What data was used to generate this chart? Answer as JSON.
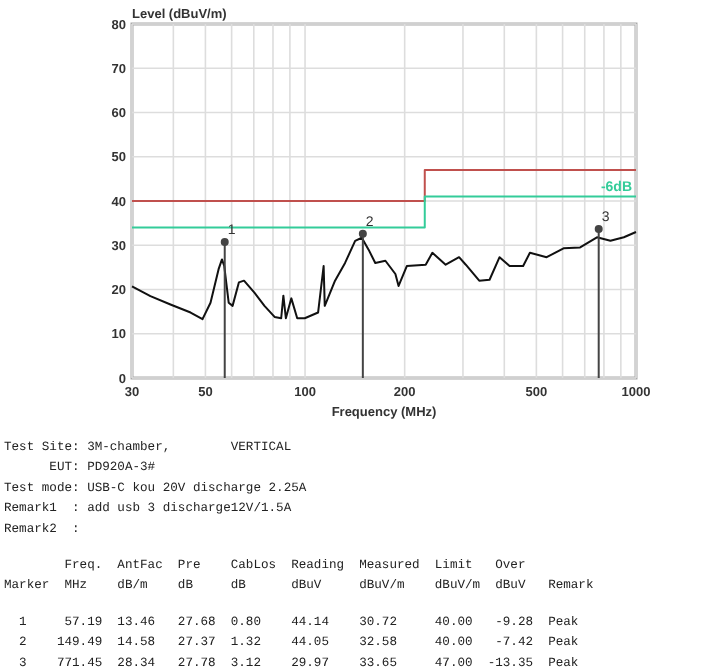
{
  "chart_data": {
    "type": "line",
    "ylabel": "Level (dBuV/m)",
    "xlabel": "Frequency (MHz)",
    "log": "x",
    "grid": true,
    "xlim": [
      30,
      1000
    ],
    "xticks": [
      30,
      {
        "value": 40,
        "label": null
      },
      50,
      {
        "value": 60,
        "label": null
      },
      {
        "value": 70,
        "label": null
      },
      {
        "value": 80,
        "label": null
      },
      {
        "value": 90,
        "label": null
      },
      100,
      200,
      {
        "value": 300,
        "label": null
      },
      {
        "value": 400,
        "label": null
      },
      500,
      {
        "value": 600,
        "label": null
      },
      {
        "value": 700,
        "label": null
      },
      {
        "value": 800,
        "label": null
      },
      {
        "value": 900,
        "label": null
      },
      1000
    ],
    "ylim": [
      0,
      80
    ],
    "yticks": [
      0,
      10,
      20,
      30,
      40,
      50,
      60,
      70,
      80
    ],
    "series": [
      {
        "type": "step",
        "color": "#c0504d",
        "x": [
          30,
          230,
          1000
        ],
        "values": [
          40,
          47,
          47
        ]
      },
      {
        "type": "step",
        "name": "-6dB",
        "color": "#33cc99",
        "x": [
          30,
          230,
          1000
        ],
        "values": [
          34,
          41,
          41
        ]
      },
      {
        "color": "#111111",
        "x": [
          30,
          34.1,
          39.2,
          45.1,
          49,
          51.8,
          54.8,
          56.1,
          57,
          58.8,
          60.4,
          63.1,
          65.4,
          70.3,
          75.4,
          80.9,
          84.7,
          86,
          87.5,
          90.9,
          94.7,
          99.8,
          109.5,
          113.8,
          114.7,
          123.2,
          132.1,
          141.7,
          148.4,
          155.6,
          163,
          174.9,
          187.5,
          191.7,
          203,
          231.5,
          242.5,
          266,
          292,
          306,
          336,
          361,
          387,
          415,
          456,
          478,
          537,
          604,
          678,
          762,
          837,
          919,
          1000
        ],
        "values": [
          20.7,
          18.5,
          16.6,
          14.8,
          13.3,
          17,
          24.6,
          26.8,
          25.3,
          17,
          16.3,
          21.6,
          22,
          19.3,
          16.3,
          13.8,
          13.5,
          18.6,
          13.5,
          18,
          13.5,
          13.5,
          14.8,
          25.3,
          16.3,
          22,
          26,
          31,
          31.7,
          29,
          26,
          26.5,
          23.5,
          20.8,
          25.3,
          25.6,
          28.3,
          25.6,
          27.3,
          25.6,
          22,
          22.2,
          27.3,
          25.3,
          25.3,
          28.3,
          27.3,
          29.3,
          29.5,
          31.8,
          31,
          31.8,
          33
        ]
      },
      {
        "type": "lollipop",
        "color": "#444444",
        "x": [
          57.19,
          149.49,
          771.45
        ],
        "values": [
          30.72,
          32.58,
          33.65
        ]
      }
    ],
    "annotations": [
      "Test Site: 3M-chamber,        VERTICAL",
      "      EUT: PD920A-3#",
      "Test mode: USB-C kou 20V discharge 2.25A",
      "Remark1  : add usb 3 discharge12V/1.5A",
      "Remark2  :",
      "        Freq.  AntFac  Pre    CabLos  Reading  Measured  Limit   Over",
      "Marker  MHz    dB/m    dB     dB      dBuV     dBuV/m    dBuV/m  dBuV   Remark",
      "  1     57.19  13.46   27.68  0.80    44.14    30.72     40.00   -9.28  Peak",
      "  2    149.49  14.58   27.37  1.32    44.05    32.58     40.00   -7.42  Peak",
      "  3    771.45  28.34   27.78  3.12    29.97    33.65     47.00  -13.35  Peak",
      {
        "text": "1",
        "x": 57.19,
        "y": 30.72
      },
      {
        "text": "2",
        "x": 149.49,
        "y": 32.58
      },
      {
        "text": "3",
        "x": 771.45,
        "y": 33.65
      }
    ]
  }
}
